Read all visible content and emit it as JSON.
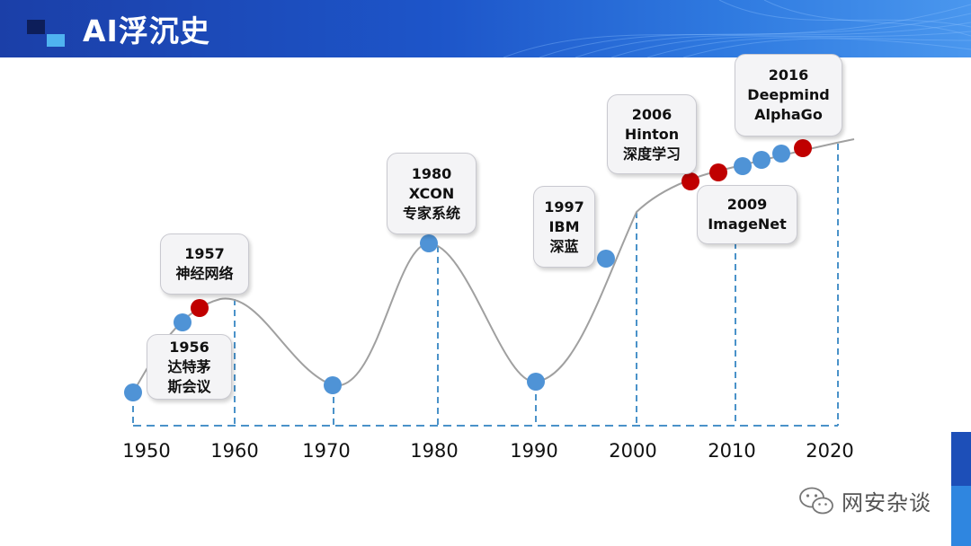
{
  "header": {
    "title": "AI浮沉史"
  },
  "timeline": {
    "years": [
      "1950",
      "1960",
      "1970",
      "1980",
      "1990",
      "2000",
      "2010",
      "2020"
    ]
  },
  "callouts": [
    {
      "id": "1956",
      "lines": [
        "1956",
        "达特茅",
        "斯会议"
      ]
    },
    {
      "id": "1957",
      "lines": [
        "1957",
        "神经网络"
      ]
    },
    {
      "id": "1980",
      "lines": [
        "1980",
        "XCON",
        "专家系统"
      ]
    },
    {
      "id": "1997",
      "lines": [
        "1997",
        "IBM",
        "深蓝"
      ]
    },
    {
      "id": "2006",
      "lines": [
        "2006",
        "Hinton",
        "深度学习"
      ]
    },
    {
      "id": "2009",
      "lines": [
        "2009",
        "ImageNet"
      ]
    },
    {
      "id": "2016",
      "lines": [
        "2016",
        "Deepmind",
        "AlphaGo"
      ]
    }
  ],
  "colors": {
    "header_blue": "#1d55c9",
    "point_blue": "#4f93d6",
    "point_red": "#c00000",
    "dash": "#4a92c9"
  },
  "watermark": {
    "text": "网安杂谈",
    "icon": "wechat-icon"
  }
}
